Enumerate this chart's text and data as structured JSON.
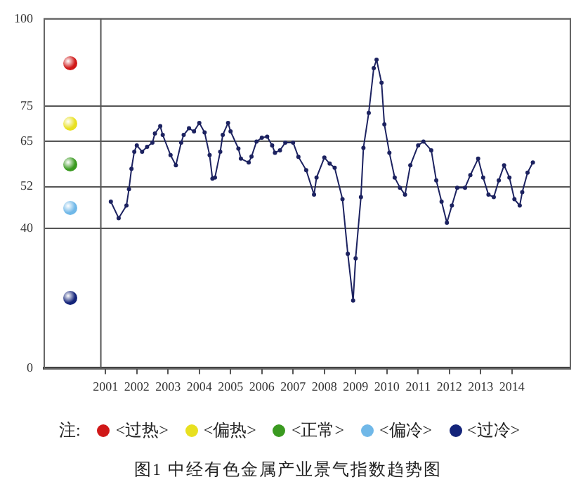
{
  "chart_data": {
    "type": "line",
    "title": "图1   中经有色金属产业景气指数趋势图",
    "annotations": [
      "注:",
      "<过热>",
      "<偏热>",
      "<正常>",
      "<偏冷>",
      "<过冷>"
    ],
    "x": [
      2001.17,
      2001.42,
      2001.67,
      2001.75,
      2001.83,
      2001.92,
      2002.0,
      2002.17,
      2002.33,
      2002.5,
      2002.58,
      2002.75,
      2002.83,
      2003.08,
      2003.25,
      2003.42,
      2003.5,
      2003.67,
      2003.83,
      2004.0,
      2004.17,
      2004.33,
      2004.42,
      2004.5,
      2004.67,
      2004.75,
      2004.92,
      2005.0,
      2005.25,
      2005.33,
      2005.58,
      2005.67,
      2005.83,
      2006.0,
      2006.17,
      2006.33,
      2006.42,
      2006.58,
      2006.75,
      2007.0,
      2007.17,
      2007.42,
      2007.67,
      2007.75,
      2008.0,
      2008.17,
      2008.33,
      2008.58,
      2008.75,
      2008.92,
      2009.0,
      2009.17,
      2009.25,
      2009.42,
      2009.58,
      2009.67,
      2009.83,
      2009.92,
      2010.08,
      2010.25,
      2010.42,
      2010.58,
      2010.75,
      2011.0,
      2011.17,
      2011.42,
      2011.58,
      2011.75,
      2011.92,
      2012.08,
      2012.25,
      2012.5,
      2012.67,
      2012.92,
      2013.08,
      2013.25,
      2013.42,
      2013.58,
      2013.75,
      2013.92,
      2014.08,
      2014.25,
      2014.33,
      2014.5,
      2014.67
    ],
    "values": [
      47.7,
      43,
      46.6,
      51.3,
      57.1,
      62,
      63.8,
      62,
      63.4,
      64.6,
      67.2,
      69.3,
      66.8,
      61,
      58.1,
      64.6,
      66.8,
      68.7,
      67.8,
      70.2,
      67.5,
      61,
      54.3,
      54.6,
      62,
      66.8,
      70.2,
      67.8,
      62.9,
      60,
      58.9,
      60.6,
      64.9,
      66,
      66.3,
      63.8,
      61.7,
      62.4,
      64.6,
      64.6,
      60.5,
      56.7,
      49.7,
      54.6,
      60.3,
      58.6,
      57.4,
      48.4,
      32.8,
      19.4,
      31.5,
      49,
      63.1,
      73.1,
      85.9,
      88.3,
      81.7,
      69.8,
      61.7,
      54.6,
      51.7,
      49.7,
      58.1,
      63.8,
      64.9,
      62.4,
      53.8,
      47.7,
      41.7,
      46.6,
      51.7,
      51.7,
      55.3,
      60,
      54.6,
      49.7,
      49,
      53.8,
      58.1,
      54.6,
      48.4,
      46.6,
      50.4,
      56,
      58.9
    ],
    "color": "#1c2260",
    "marker": "circle",
    "xlim": [
      1999.04,
      2015.87
    ],
    "xticks": [
      2001,
      2002,
      2003,
      2004,
      2005,
      2006,
      2007,
      2008,
      2009,
      2010,
      2011,
      2012,
      2013,
      2014
    ],
    "ylim": [
      0,
      100
    ],
    "yticks": [
      0,
      40,
      52,
      65,
      75,
      100
    ],
    "grid": "y",
    "ref_lines": [
      {
        "axis": "x",
        "value": 2000.85,
        "label": null,
        "color": "#555555"
      }
    ]
  }
}
